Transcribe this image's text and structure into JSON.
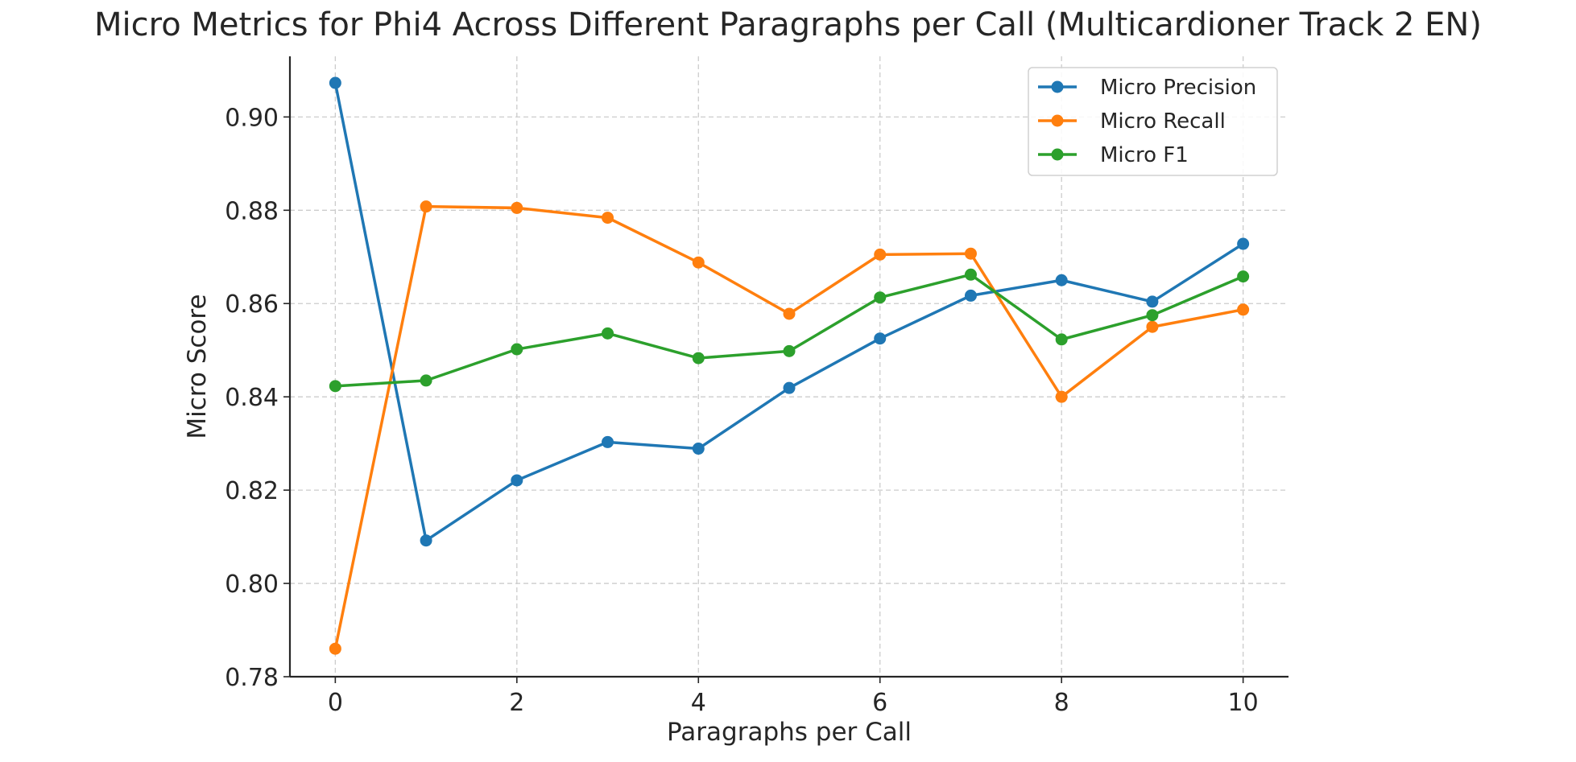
{
  "chart_data": {
    "type": "line",
    "title": "Micro Metrics for Phi4 Across Different Paragraphs per Call (Multicardioner Track 2 EN)",
    "xlabel": "Paragraphs per Call",
    "ylabel": "Micro Score",
    "x": [
      0,
      1,
      2,
      3,
      4,
      5,
      6,
      7,
      8,
      9,
      10
    ],
    "xticks": [
      0,
      2,
      4,
      6,
      8,
      10
    ],
    "xtick_labels": [
      "0",
      "2",
      "4",
      "6",
      "8",
      "10"
    ],
    "yticks": [
      0.78,
      0.8,
      0.82,
      0.84,
      0.86,
      0.88,
      0.9
    ],
    "ytick_labels": [
      "0.78",
      "0.80",
      "0.82",
      "0.84",
      "0.86",
      "0.88",
      "0.90"
    ],
    "xlim": [
      -0.5,
      10.5
    ],
    "ylim": [
      0.78,
      0.913
    ],
    "grid": true,
    "legend_position": "top-right",
    "series": [
      {
        "name": "Micro Precision",
        "color": "#1f77b4",
        "values": [
          0.9073,
          0.8092,
          0.8221,
          0.8303,
          0.8289,
          0.8419,
          0.8525,
          0.8617,
          0.865,
          0.8604,
          0.8728
        ]
      },
      {
        "name": "Micro Recall",
        "color": "#ff7f0e",
        "values": [
          0.786,
          0.8808,
          0.8805,
          0.8784,
          0.8688,
          0.8578,
          0.8705,
          0.8707,
          0.84,
          0.855,
          0.8587
        ]
      },
      {
        "name": "Micro F1",
        "color": "#2ca02c",
        "values": [
          0.8423,
          0.8435,
          0.8502,
          0.8536,
          0.8483,
          0.8498,
          0.8613,
          0.8662,
          0.8523,
          0.8575,
          0.8658
        ]
      }
    ]
  }
}
